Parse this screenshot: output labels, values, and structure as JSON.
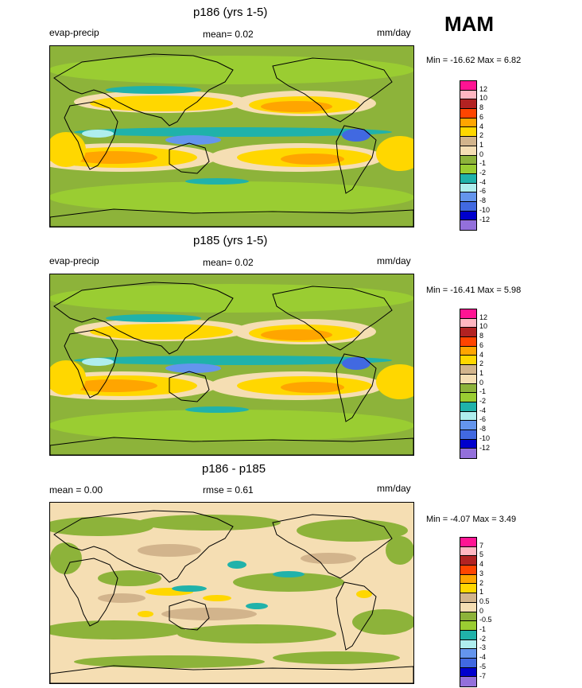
{
  "season": "MAM",
  "colors": {
    "c12": "#ff1493",
    "c10": "#ffb6c1",
    "c8": "#b22222",
    "c6": "#ff4500",
    "c4": "#ffa500",
    "c2": "#ffd700",
    "c1": "#d2b48c",
    "c0": "#f5deb3",
    "cm1": "#8db33a",
    "cm2": "#9acd32",
    "cm4": "#20b2aa",
    "cm6": "#afeeee",
    "cm8": "#6495ed",
    "cm10": "#4169e1",
    "cm12": "#0000cd",
    "cm14": "#9370db"
  },
  "chart_data": [
    {
      "type": "heatmap",
      "title": "p186 (yrs 1-5)",
      "left_label": "evap-precip",
      "center_label": "mean=  0.02",
      "units": "mm/day",
      "min_label": "Min = -16.62 Max =  6.82",
      "min": -16.62,
      "max": 6.82,
      "mean": 0.02,
      "levels": [
        "12",
        "10",
        "8",
        "6",
        "4",
        "2",
        "1",
        "0",
        "-1",
        "-2",
        "-4",
        "-6",
        "-8",
        "-10",
        "-12"
      ],
      "palette": [
        "#ff1493",
        "#ffb6c1",
        "#b22222",
        "#ff4500",
        "#ffa500",
        "#ffd700",
        "#d2b48c",
        "#f5deb3",
        "#8db33a",
        "#9acd32",
        "#20b2aa",
        "#afeeee",
        "#6495ed",
        "#4169e1",
        "#0000cd",
        "#9370db"
      ]
    },
    {
      "type": "heatmap",
      "title": "p185 (yrs 1-5)",
      "left_label": "evap-precip",
      "center_label": "mean=  0.02",
      "units": "mm/day",
      "min_label": "Min = -16.41 Max =  5.98",
      "min": -16.41,
      "max": 5.98,
      "mean": 0.02,
      "levels": [
        "12",
        "10",
        "8",
        "6",
        "4",
        "2",
        "1",
        "0",
        "-1",
        "-2",
        "-4",
        "-6",
        "-8",
        "-10",
        "-12"
      ],
      "palette": [
        "#ff1493",
        "#ffb6c1",
        "#b22222",
        "#ff4500",
        "#ffa500",
        "#ffd700",
        "#d2b48c",
        "#f5deb3",
        "#8db33a",
        "#9acd32",
        "#20b2aa",
        "#afeeee",
        "#6495ed",
        "#4169e1",
        "#0000cd",
        "#9370db"
      ]
    },
    {
      "type": "heatmap",
      "title": "p186 - p185",
      "left_label": "mean =  0.00",
      "center_label": "rmse =  0.61",
      "units": "mm/day",
      "min_label": "Min =  -4.07 Max =  3.49",
      "min": -4.07,
      "max": 3.49,
      "mean": 0.0,
      "rmse": 0.61,
      "levels": [
        "7",
        "5",
        "4",
        "3",
        "2",
        "1",
        "0.5",
        "0",
        "-0.5",
        "-1",
        "-2",
        "-3",
        "-4",
        "-5",
        "-7"
      ],
      "palette": [
        "#ff1493",
        "#ffb6c1",
        "#b22222",
        "#ff4500",
        "#ffa500",
        "#ffd700",
        "#d2b48c",
        "#f5deb3",
        "#8db33a",
        "#9acd32",
        "#20b2aa",
        "#afeeee",
        "#6495ed",
        "#4169e1",
        "#0000cd",
        "#9370db"
      ]
    }
  ]
}
